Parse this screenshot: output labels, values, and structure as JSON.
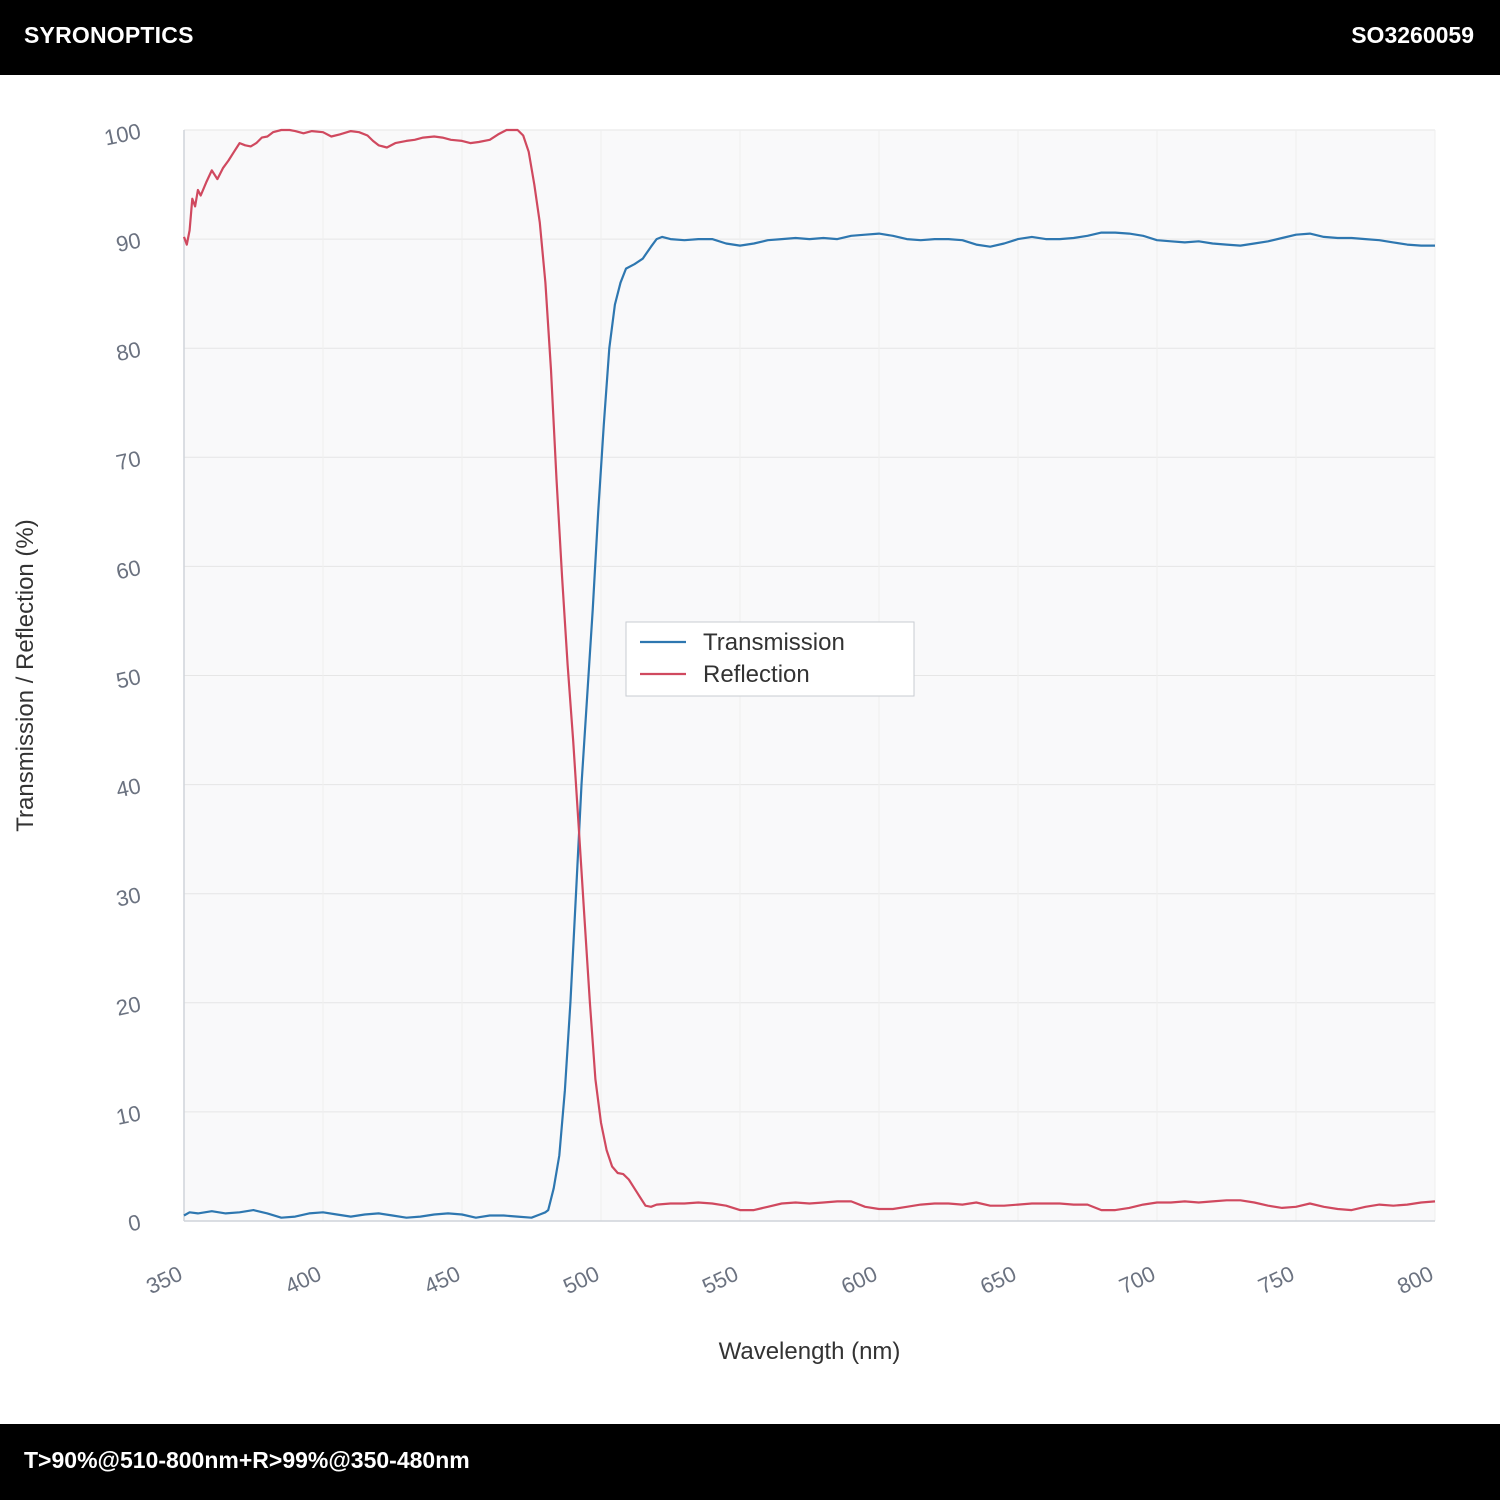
{
  "header": {
    "brand": "SYRONOPTICS",
    "part_number": "SO3260059"
  },
  "footer": {
    "spec": "T>90%@510-800nm+R>99%@350-480nm"
  },
  "colors": {
    "transmission": "#2e77b0",
    "reflection": "#d0495f",
    "plot_background": "#f9f9fa",
    "grid": "#e6e6e6"
  },
  "chart_data": {
    "type": "line",
    "title": "",
    "xlabel": "Wavelength (nm)",
    "ylabel": "Transmission / Reflection (%)",
    "xlim": [
      350,
      800
    ],
    "ylim": [
      0,
      100
    ],
    "x_ticks": [
      350,
      400,
      450,
      500,
      550,
      600,
      650,
      700,
      750,
      800
    ],
    "y_ticks": [
      0,
      10,
      20,
      30,
      40,
      50,
      60,
      70,
      80,
      90,
      100
    ],
    "grid": true,
    "legend_position": "center",
    "series": [
      {
        "name": "Transmission",
        "color_key": "transmission",
        "points": [
          [
            350,
            0.5
          ],
          [
            352,
            0.8
          ],
          [
            355,
            0.7
          ],
          [
            360,
            0.9
          ],
          [
            365,
            0.7
          ],
          [
            370,
            0.8
          ],
          [
            375,
            1.0
          ],
          [
            380,
            0.7
          ],
          [
            385,
            0.3
          ],
          [
            390,
            0.4
          ],
          [
            395,
            0.7
          ],
          [
            400,
            0.8
          ],
          [
            405,
            0.6
          ],
          [
            410,
            0.4
          ],
          [
            415,
            0.6
          ],
          [
            420,
            0.7
          ],
          [
            425,
            0.5
          ],
          [
            430,
            0.3
          ],
          [
            435,
            0.4
          ],
          [
            440,
            0.6
          ],
          [
            445,
            0.7
          ],
          [
            450,
            0.6
          ],
          [
            455,
            0.3
          ],
          [
            460,
            0.5
          ],
          [
            465,
            0.5
          ],
          [
            470,
            0.4
          ],
          [
            475,
            0.3
          ],
          [
            478,
            0.6
          ],
          [
            480,
            0.8
          ],
          [
            481,
            1.0
          ],
          [
            483,
            3.0
          ],
          [
            485,
            6.0
          ],
          [
            487,
            12.0
          ],
          [
            489,
            20.0
          ],
          [
            491,
            30.0
          ],
          [
            493,
            40.0
          ],
          [
            495,
            48.0
          ],
          [
            497,
            56.0
          ],
          [
            499,
            65.0
          ],
          [
            501,
            73.0
          ],
          [
            503,
            80.0
          ],
          [
            505,
            84.0
          ],
          [
            507,
            86.0
          ],
          [
            509,
            87.3
          ],
          [
            512,
            87.7
          ],
          [
            515,
            88.2
          ],
          [
            518,
            89.3
          ],
          [
            520,
            90.0
          ],
          [
            522,
            90.2
          ],
          [
            525,
            90.0
          ],
          [
            530,
            89.9
          ],
          [
            535,
            90.0
          ],
          [
            540,
            90.0
          ],
          [
            545,
            89.6
          ],
          [
            550,
            89.4
          ],
          [
            555,
            89.6
          ],
          [
            560,
            89.9
          ],
          [
            565,
            90.0
          ],
          [
            570,
            90.1
          ],
          [
            575,
            90.0
          ],
          [
            580,
            90.1
          ],
          [
            585,
            90.0
          ],
          [
            590,
            90.3
          ],
          [
            595,
            90.4
          ],
          [
            600,
            90.5
          ],
          [
            605,
            90.3
          ],
          [
            610,
            90.0
          ],
          [
            615,
            89.9
          ],
          [
            620,
            90.0
          ],
          [
            625,
            90.0
          ],
          [
            630,
            89.9
          ],
          [
            635,
            89.5
          ],
          [
            640,
            89.3
          ],
          [
            645,
            89.6
          ],
          [
            650,
            90.0
          ],
          [
            655,
            90.2
          ],
          [
            660,
            90.0
          ],
          [
            665,
            90.0
          ],
          [
            670,
            90.1
          ],
          [
            675,
            90.3
          ],
          [
            680,
            90.6
          ],
          [
            685,
            90.6
          ],
          [
            690,
            90.5
          ],
          [
            695,
            90.3
          ],
          [
            700,
            89.9
          ],
          [
            705,
            89.8
          ],
          [
            710,
            89.7
          ],
          [
            715,
            89.8
          ],
          [
            720,
            89.6
          ],
          [
            725,
            89.5
          ],
          [
            730,
            89.4
          ],
          [
            735,
            89.6
          ],
          [
            740,
            89.8
          ],
          [
            745,
            90.1
          ],
          [
            750,
            90.4
          ],
          [
            755,
            90.5
          ],
          [
            760,
            90.2
          ],
          [
            765,
            90.1
          ],
          [
            770,
            90.1
          ],
          [
            775,
            90.0
          ],
          [
            780,
            89.9
          ],
          [
            785,
            89.7
          ],
          [
            790,
            89.5
          ],
          [
            795,
            89.4
          ],
          [
            800,
            89.4
          ]
        ]
      },
      {
        "name": "Reflection",
        "color_key": "reflection",
        "points": [
          [
            350,
            90.2
          ],
          [
            351,
            89.5
          ],
          [
            352,
            90.8
          ],
          [
            353,
            93.7
          ],
          [
            354,
            93.0
          ],
          [
            355,
            94.5
          ],
          [
            356,
            94.0
          ],
          [
            358,
            95.2
          ],
          [
            360,
            96.3
          ],
          [
            362,
            95.5
          ],
          [
            364,
            96.5
          ],
          [
            366,
            97.2
          ],
          [
            368,
            98.0
          ],
          [
            370,
            98.8
          ],
          [
            372,
            98.6
          ],
          [
            374,
            98.5
          ],
          [
            376,
            98.8
          ],
          [
            378,
            99.3
          ],
          [
            380,
            99.4
          ],
          [
            382,
            99.8
          ],
          [
            385,
            100.0
          ],
          [
            388,
            100.0
          ],
          [
            390,
            99.9
          ],
          [
            393,
            99.7
          ],
          [
            396,
            99.9
          ],
          [
            400,
            99.8
          ],
          [
            403,
            99.4
          ],
          [
            406,
            99.6
          ],
          [
            410,
            99.9
          ],
          [
            413,
            99.8
          ],
          [
            416,
            99.5
          ],
          [
            418,
            99.0
          ],
          [
            420,
            98.6
          ],
          [
            423,
            98.4
          ],
          [
            426,
            98.8
          ],
          [
            430,
            99.0
          ],
          [
            433,
            99.1
          ],
          [
            436,
            99.3
          ],
          [
            440,
            99.4
          ],
          [
            443,
            99.3
          ],
          [
            446,
            99.1
          ],
          [
            450,
            99.0
          ],
          [
            453,
            98.8
          ],
          [
            456,
            98.9
          ],
          [
            460,
            99.1
          ],
          [
            463,
            99.6
          ],
          [
            466,
            100.0
          ],
          [
            470,
            100.0
          ],
          [
            472,
            99.5
          ],
          [
            474,
            98.0
          ],
          [
            476,
            95.0
          ],
          [
            478,
            91.5
          ],
          [
            480,
            86.0
          ],
          [
            482,
            78.0
          ],
          [
            484,
            68.0
          ],
          [
            486,
            59.0
          ],
          [
            488,
            51.0
          ],
          [
            490,
            44.0
          ],
          [
            492,
            36.0
          ],
          [
            494,
            28.0
          ],
          [
            496,
            20.0
          ],
          [
            498,
            13.0
          ],
          [
            500,
            9.0
          ],
          [
            502,
            6.5
          ],
          [
            504,
            5.0
          ],
          [
            506,
            4.4
          ],
          [
            508,
            4.3
          ],
          [
            510,
            3.8
          ],
          [
            512,
            3.0
          ],
          [
            514,
            2.2
          ],
          [
            516,
            1.4
          ],
          [
            518,
            1.3
          ],
          [
            520,
            1.5
          ],
          [
            525,
            1.6
          ],
          [
            530,
            1.6
          ],
          [
            535,
            1.7
          ],
          [
            540,
            1.6
          ],
          [
            545,
            1.4
          ],
          [
            550,
            1.0
          ],
          [
            555,
            1.0
          ],
          [
            560,
            1.3
          ],
          [
            565,
            1.6
          ],
          [
            570,
            1.7
          ],
          [
            575,
            1.6
          ],
          [
            580,
            1.7
          ],
          [
            585,
            1.8
          ],
          [
            590,
            1.8
          ],
          [
            595,
            1.3
          ],
          [
            600,
            1.1
          ],
          [
            605,
            1.1
          ],
          [
            610,
            1.3
          ],
          [
            615,
            1.5
          ],
          [
            620,
            1.6
          ],
          [
            625,
            1.6
          ],
          [
            630,
            1.5
          ],
          [
            635,
            1.7
          ],
          [
            640,
            1.4
          ],
          [
            645,
            1.4
          ],
          [
            650,
            1.5
          ],
          [
            655,
            1.6
          ],
          [
            660,
            1.6
          ],
          [
            665,
            1.6
          ],
          [
            670,
            1.5
          ],
          [
            675,
            1.5
          ],
          [
            680,
            1.0
          ],
          [
            685,
            1.0
          ],
          [
            690,
            1.2
          ],
          [
            695,
            1.5
          ],
          [
            700,
            1.7
          ],
          [
            705,
            1.7
          ],
          [
            710,
            1.8
          ],
          [
            715,
            1.7
          ],
          [
            720,
            1.8
          ],
          [
            725,
            1.9
          ],
          [
            730,
            1.9
          ],
          [
            735,
            1.7
          ],
          [
            740,
            1.4
          ],
          [
            745,
            1.2
          ],
          [
            750,
            1.3
          ],
          [
            755,
            1.6
          ],
          [
            760,
            1.3
          ],
          [
            765,
            1.1
          ],
          [
            770,
            1.0
          ],
          [
            775,
            1.3
          ],
          [
            780,
            1.5
          ],
          [
            785,
            1.4
          ],
          [
            790,
            1.5
          ],
          [
            795,
            1.7
          ],
          [
            800,
            1.8
          ]
        ]
      }
    ]
  }
}
